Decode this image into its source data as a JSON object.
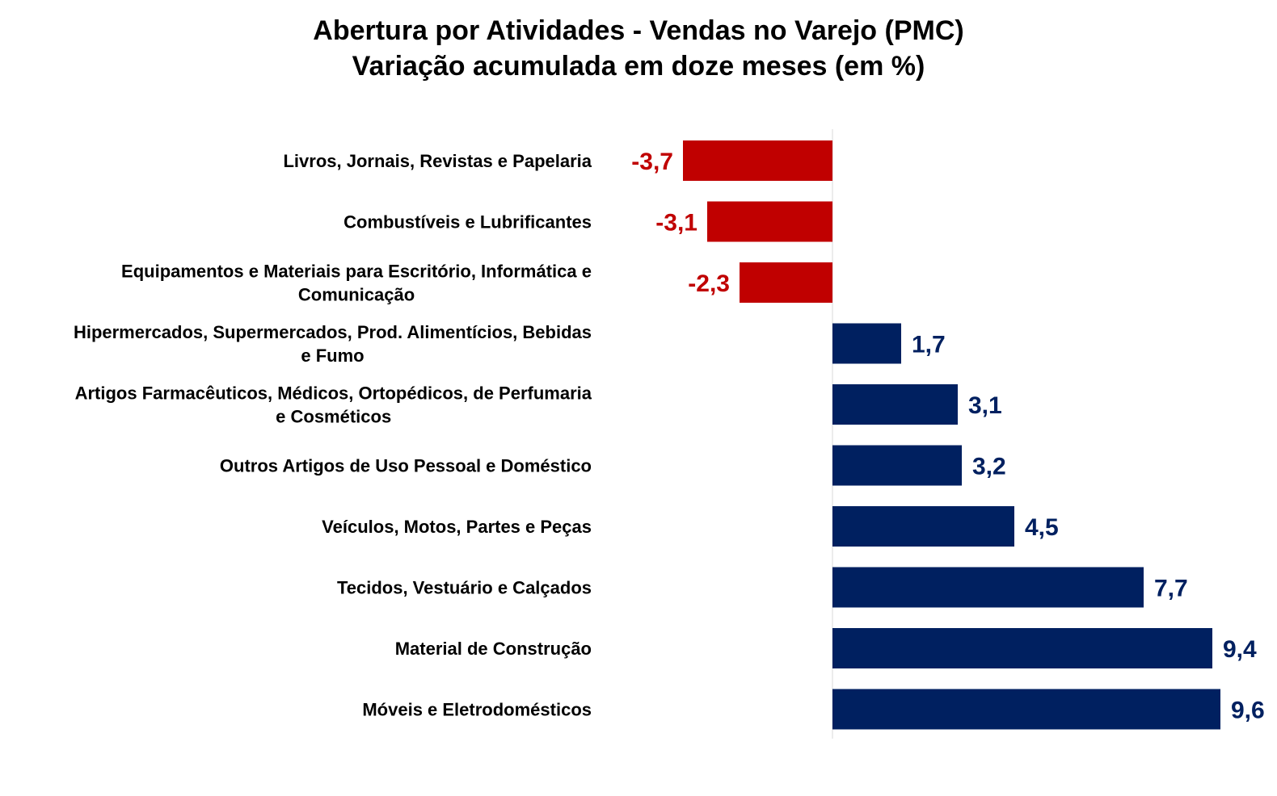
{
  "chart_data": {
    "type": "bar",
    "orientation": "horizontal",
    "title": "Abertura por Atividades - Vendas no Varejo (PMC)",
    "subtitle": "Variação acumulada em doze meses (em %)",
    "xlabel": "",
    "ylabel": "",
    "xlim": [
      -3.7,
      9.6
    ],
    "grid": false,
    "legend": "none",
    "categories": [
      [
        "Livros, Jornais, Revistas e Papelaria"
      ],
      [
        "Combustíveis e Lubrificantes"
      ],
      [
        "Equipamentos e Materiais para Escritório, Informática e",
        "Comunicação"
      ],
      [
        "Hipermercados, Supermercados, Prod. Alimentícios, Bebidas",
        "e Fumo"
      ],
      [
        "Artigos Farmacêuticos, Médicos, Ortopédicos, de Perfumaria",
        "e Cosméticos"
      ],
      [
        "Outros Artigos de Uso Pessoal e Doméstico"
      ],
      [
        "Veículos, Motos, Partes e Peças"
      ],
      [
        "Tecidos, Vestuário e Calçados"
      ],
      [
        "Material de Construção"
      ],
      [
        "Móveis e Eletrodomésticos"
      ]
    ],
    "values": [
      -3.7,
      -3.1,
      -2.3,
      1.7,
      3.1,
      3.2,
      4.5,
      7.7,
      9.4,
      9.6
    ],
    "value_labels": [
      "-3,7",
      "-3,1",
      "-2,3",
      "1,7",
      "3,1",
      "3,2",
      "4,5",
      "7,7",
      "9,4",
      "9,6"
    ],
    "colors": {
      "negative": "#C00000",
      "positive": "#002060",
      "axis": "#D9D9D9"
    }
  }
}
